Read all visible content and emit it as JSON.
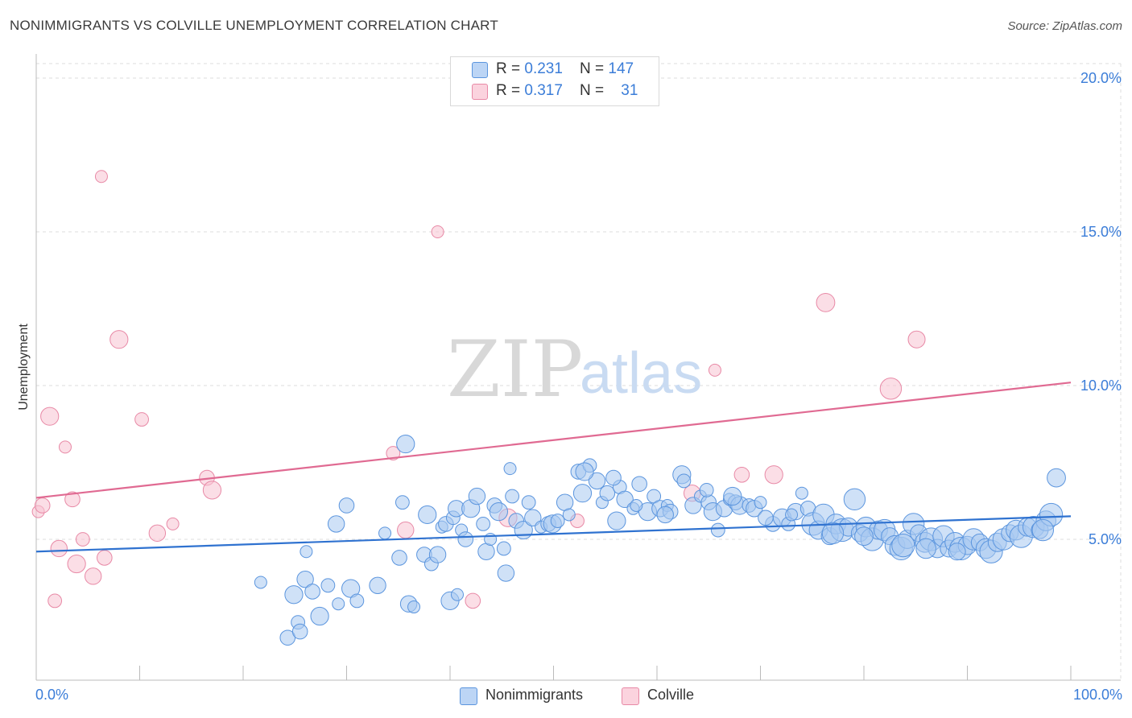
{
  "title": "NONIMMIGRANTS VS COLVILLE UNEMPLOYMENT CORRELATION CHART",
  "source": "Source: ZipAtlas.com",
  "watermark": {
    "zip": "ZIP",
    "atlas": "atlas"
  },
  "legend_top": {
    "rows": [
      {
        "series": "Nonimmigrants",
        "r_label": "R = ",
        "r_value": "0.231",
        "n_label": "N = ",
        "n_value": "147"
      },
      {
        "series": "Colville",
        "r_label": "R = ",
        "r_value": "0.317",
        "n_label": "N = ",
        "n_value": "31"
      }
    ]
  },
  "colors": {
    "blue_fill": "#a8c8f0",
    "blue_stroke": "#5b95de",
    "blue_line": "#2f72d0",
    "pink_fill": "#f7c2d2",
    "pink_stroke": "#e889a6",
    "pink_line": "#e06a92",
    "axis_text": "#3b7dd8",
    "grid": "#dddddd"
  },
  "chart_data": {
    "type": "scatter",
    "title": "NONIMMIGRANTS VS COLVILLE UNEMPLOYMENT CORRELATION CHART",
    "xlabel": "",
    "ylabel": "Unemployment",
    "xlim": [
      0,
      100
    ],
    "ylim": [
      0,
      20
    ],
    "x_tick_labels": [
      "0.0%",
      "100.0%"
    ],
    "y_ticks": [
      5,
      10,
      15,
      20
    ],
    "y_tick_labels": [
      "5.0%",
      "10.0%",
      "15.0%",
      "20.0%"
    ],
    "legend": [
      "Nonimmigrants",
      "Colville"
    ],
    "series": [
      {
        "name": "Nonimmigrants",
        "trend": {
          "x": [
            0,
            100
          ],
          "y": [
            4.6,
            5.75
          ]
        },
        "points": [
          [
            21.7,
            3.6
          ],
          [
            24.3,
            1.8
          ],
          [
            24.9,
            3.2
          ],
          [
            25.3,
            2.3
          ],
          [
            26.0,
            3.7
          ],
          [
            26.1,
            4.6
          ],
          [
            26.7,
            3.3
          ],
          [
            27.4,
            2.5
          ],
          [
            28.2,
            3.5
          ],
          [
            29.0,
            5.5
          ],
          [
            29.2,
            2.9
          ],
          [
            30.0,
            6.1
          ],
          [
            30.4,
            3.4
          ],
          [
            31.0,
            3.0
          ],
          [
            33.0,
            3.5
          ],
          [
            33.7,
            5.2
          ],
          [
            35.1,
            4.4
          ],
          [
            35.7,
            8.1
          ],
          [
            35.4,
            6.2
          ],
          [
            36.0,
            2.9
          ],
          [
            36.5,
            2.8
          ],
          [
            37.5,
            4.5
          ],
          [
            37.8,
            5.8
          ],
          [
            38.2,
            4.2
          ],
          [
            38.8,
            4.5
          ],
          [
            39.2,
            5.4
          ],
          [
            39.6,
            5.5
          ],
          [
            40.0,
            3.0
          ],
          [
            40.3,
            5.7
          ],
          [
            40.6,
            6.0
          ],
          [
            41.1,
            5.3
          ],
          [
            41.5,
            5.0
          ],
          [
            42.0,
            6.0
          ],
          [
            43.2,
            5.5
          ],
          [
            43.5,
            4.6
          ],
          [
            43.9,
            5.0
          ],
          [
            44.3,
            6.1
          ],
          [
            44.7,
            5.9
          ],
          [
            45.2,
            4.7
          ],
          [
            45.4,
            3.9
          ],
          [
            45.8,
            7.3
          ],
          [
            46.4,
            5.6
          ],
          [
            47.1,
            5.3
          ],
          [
            47.6,
            6.2
          ],
          [
            48.0,
            5.7
          ],
          [
            48.8,
            5.4
          ],
          [
            49.5,
            5.5
          ],
          [
            49.9,
            5.5
          ],
          [
            50.4,
            5.6
          ],
          [
            51.1,
            6.2
          ],
          [
            51.5,
            5.8
          ],
          [
            52.4,
            7.2
          ],
          [
            52.8,
            6.5
          ],
          [
            53.5,
            7.4
          ],
          [
            54.2,
            6.9
          ],
          [
            54.7,
            6.2
          ],
          [
            55.2,
            6.5
          ],
          [
            56.1,
            5.6
          ],
          [
            56.4,
            6.7
          ],
          [
            56.9,
            6.3
          ],
          [
            57.7,
            6.0
          ],
          [
            58.3,
            6.8
          ],
          [
            59.1,
            5.9
          ],
          [
            59.7,
            6.4
          ],
          [
            60.3,
            6.0
          ],
          [
            61.0,
            6.1
          ],
          [
            61.3,
            5.9
          ],
          [
            62.4,
            7.1
          ],
          [
            62.6,
            6.9
          ],
          [
            63.5,
            6.1
          ],
          [
            64.2,
            6.4
          ],
          [
            65.0,
            6.2
          ],
          [
            65.4,
            5.9
          ],
          [
            65.9,
            5.3
          ],
          [
            66.5,
            6.0
          ],
          [
            67.0,
            6.3
          ],
          [
            67.6,
            6.2
          ],
          [
            68.0,
            6.1
          ],
          [
            68.9,
            6.1
          ],
          [
            69.4,
            6.0
          ],
          [
            70.0,
            6.2
          ],
          [
            71.2,
            5.5
          ],
          [
            72.1,
            5.7
          ],
          [
            72.7,
            5.5
          ],
          [
            73.4,
            5.9
          ],
          [
            74.0,
            6.5
          ],
          [
            74.6,
            6.0
          ],
          [
            75.1,
            5.5
          ],
          [
            75.6,
            5.3
          ],
          [
            76.1,
            5.8
          ],
          [
            76.7,
            5.1
          ],
          [
            77.3,
            5.5
          ],
          [
            77.9,
            5.3
          ],
          [
            78.5,
            5.4
          ],
          [
            79.1,
            6.3
          ],
          [
            79.6,
            5.2
          ],
          [
            80.2,
            5.4
          ],
          [
            80.8,
            5.0
          ],
          [
            81.4,
            5.3
          ],
          [
            82.0,
            5.3
          ],
          [
            82.5,
            5.1
          ],
          [
            83.0,
            4.8
          ],
          [
            83.6,
            4.7
          ],
          [
            84.2,
            5.0
          ],
          [
            84.8,
            5.5
          ],
          [
            85.3,
            5.2
          ],
          [
            85.9,
            4.9
          ],
          [
            86.5,
            5.0
          ],
          [
            87.1,
            4.7
          ],
          [
            87.7,
            5.1
          ],
          [
            88.2,
            4.7
          ],
          [
            88.8,
            4.9
          ],
          [
            89.4,
            4.7
          ],
          [
            90.0,
            4.8
          ],
          [
            90.6,
            5.0
          ],
          [
            91.2,
            4.9
          ],
          [
            91.8,
            4.7
          ],
          [
            92.3,
            4.6
          ],
          [
            92.9,
            4.9
          ],
          [
            93.5,
            5.0
          ],
          [
            94.1,
            5.2
          ],
          [
            94.7,
            5.3
          ],
          [
            95.2,
            5.1
          ],
          [
            95.8,
            5.4
          ],
          [
            96.4,
            5.4
          ],
          [
            97.0,
            5.3
          ],
          [
            97.6,
            5.6
          ],
          [
            98.1,
            5.8
          ],
          [
            98.6,
            7.0
          ],
          [
            97.3,
            5.3
          ],
          [
            89.0,
            4.6
          ],
          [
            86.0,
            4.7
          ],
          [
            83.8,
            4.8
          ],
          [
            80.0,
            5.1
          ],
          [
            77.0,
            5.2
          ],
          [
            73.0,
            5.8
          ],
          [
            70.5,
            5.7
          ],
          [
            67.3,
            6.4
          ],
          [
            64.8,
            6.6
          ],
          [
            60.8,
            5.8
          ],
          [
            58.0,
            6.1
          ],
          [
            55.8,
            7.0
          ],
          [
            53.0,
            7.2
          ],
          [
            46.0,
            6.4
          ],
          [
            42.6,
            6.4
          ],
          [
            40.7,
            3.2
          ],
          [
            25.5,
            2.0
          ]
        ]
      },
      {
        "name": "Colville",
        "trend": {
          "x": [
            0,
            100
          ],
          "y": [
            6.35,
            10.1
          ]
        },
        "points": [
          [
            0.2,
            5.9
          ],
          [
            0.6,
            6.1
          ],
          [
            1.3,
            9.0
          ],
          [
            1.8,
            3.0
          ],
          [
            2.2,
            4.7
          ],
          [
            2.8,
            8.0
          ],
          [
            3.5,
            6.3
          ],
          [
            3.9,
            4.2
          ],
          [
            4.5,
            5.0
          ],
          [
            5.5,
            3.8
          ],
          [
            6.3,
            16.8
          ],
          [
            6.6,
            4.4
          ],
          [
            8.0,
            11.5
          ],
          [
            10.2,
            8.9
          ],
          [
            11.7,
            5.2
          ],
          [
            13.2,
            5.5
          ],
          [
            16.5,
            7.0
          ],
          [
            17.0,
            6.6
          ],
          [
            34.5,
            7.8
          ],
          [
            35.7,
            5.3
          ],
          [
            38.8,
            15.0
          ],
          [
            42.2,
            3.0
          ],
          [
            45.6,
            5.7
          ],
          [
            52.3,
            5.6
          ],
          [
            63.4,
            6.5
          ],
          [
            65.6,
            10.5
          ],
          [
            68.2,
            7.1
          ],
          [
            71.3,
            7.1
          ],
          [
            76.3,
            12.7
          ],
          [
            82.6,
            9.9
          ],
          [
            85.1,
            11.5
          ]
        ]
      }
    ]
  },
  "legend_bottom": [
    "Nonimmigrants",
    "Colville"
  ]
}
